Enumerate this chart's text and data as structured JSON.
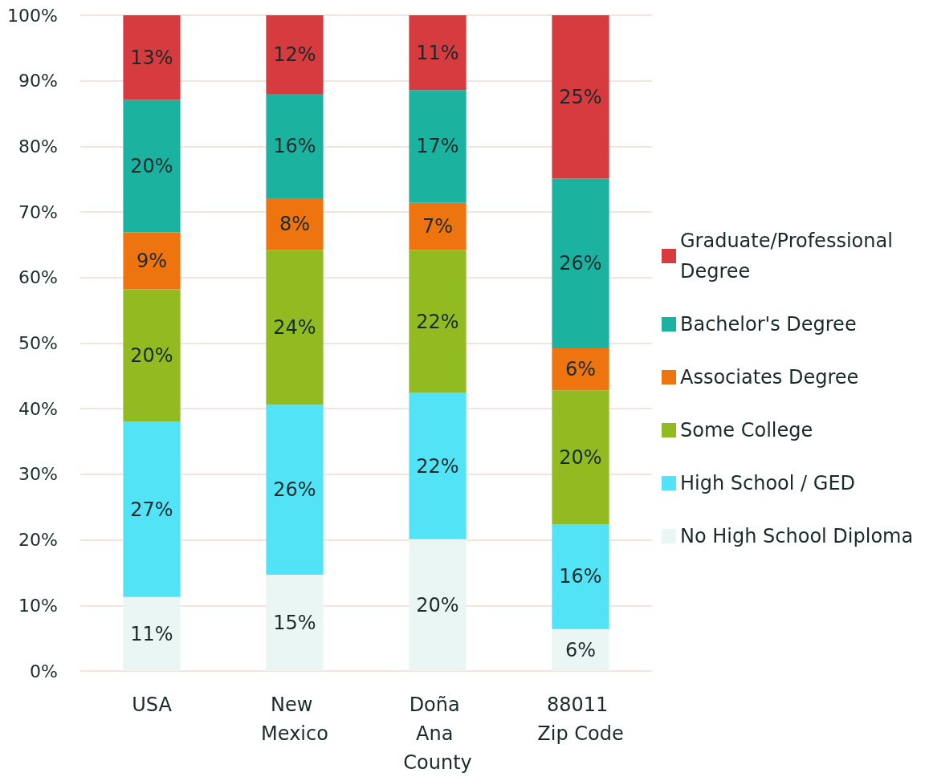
{
  "chart_data": {
    "type": "bar",
    "stacked": true,
    "categories": [
      "USA",
      "New Mexico",
      "Doña Ana County",
      "88011 Zip Code"
    ],
    "series": [
      {
        "name": "No High School Diploma",
        "color": "#eaf6f3",
        "values": [
          11.3,
          14.7,
          20.1,
          6.4
        ],
        "value_labels": [
          "11%",
          "15%",
          "20%",
          "6%"
        ]
      },
      {
        "name": "High School / GED",
        "color": "#52e3f7",
        "values": [
          26.7,
          25.9,
          22.3,
          16.0
        ],
        "value_labels": [
          "27%",
          "26%",
          "22%",
          "16%"
        ]
      },
      {
        "name": "Some College",
        "color": "#92bb22",
        "values": [
          20.2,
          23.6,
          21.8,
          20.4
        ],
        "value_labels": [
          "20%",
          "24%",
          "22%",
          "20%"
        ]
      },
      {
        "name": "Associates Degree",
        "color": "#ee7410",
        "values": [
          8.7,
          7.9,
          7.2,
          6.4
        ],
        "value_labels": [
          "9%",
          "8%",
          "7%",
          "6%"
        ]
      },
      {
        "name": "Bachelor's Degree",
        "color": "#1bb3a0",
        "values": [
          20.2,
          15.9,
          17.2,
          25.9
        ],
        "value_labels": [
          "20%",
          "16%",
          "17%",
          "26%"
        ]
      },
      {
        "name": "Graduate/Professional Degree",
        "color": "#d63c3f",
        "values": [
          12.9,
          12.0,
          11.4,
          24.9
        ],
        "value_labels": [
          "13%",
          "12%",
          "11%",
          "25%"
        ]
      }
    ],
    "ylim": [
      0,
      100
    ],
    "yticks": [
      {
        "value": 0,
        "label": "0%"
      },
      {
        "value": 10,
        "label": "10%"
      },
      {
        "value": 20,
        "label": "20%"
      },
      {
        "value": 30,
        "label": "30%"
      },
      {
        "value": 40,
        "label": "40%"
      },
      {
        "value": 50,
        "label": "50%"
      },
      {
        "value": 60,
        "label": "60%"
      },
      {
        "value": 70,
        "label": "70%"
      },
      {
        "value": 80,
        "label": "80%"
      },
      {
        "value": 90,
        "label": "90%"
      },
      {
        "value": 100,
        "label": "100%"
      }
    ],
    "grid": "y",
    "legend": "right"
  }
}
